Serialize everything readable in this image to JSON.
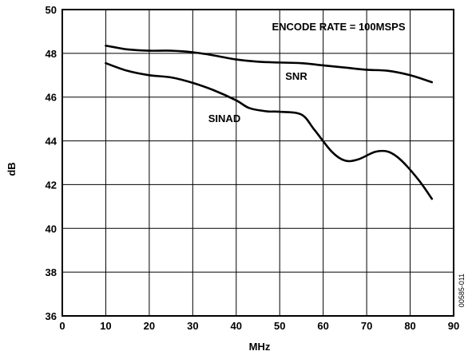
{
  "chart_data": {
    "type": "line",
    "xlabel": "MHz",
    "ylabel": "dB",
    "xlim": [
      0,
      90
    ],
    "ylim": [
      36,
      50
    ],
    "x_ticks": [
      "0",
      "10",
      "20",
      "30",
      "40",
      "50",
      "60",
      "70",
      "80",
      "90"
    ],
    "y_ticks": [
      "36",
      "38",
      "40",
      "42",
      "44",
      "46",
      "48",
      "50"
    ],
    "grid": true,
    "annotations": [
      {
        "text": "ENCODE RATE = 100MSPS"
      },
      {
        "text": "SNR"
      },
      {
        "text": "SINAD"
      }
    ],
    "figure_id": "00585-011",
    "series": [
      {
        "name": "SNR",
        "x": [
          10,
          12,
          15,
          20,
          25,
          30,
          35,
          40,
          45,
          50,
          55,
          60,
          65,
          70,
          75,
          80,
          85
        ],
        "y": [
          48.35,
          48.28,
          48.18,
          48.12,
          48.12,
          48.05,
          47.9,
          47.72,
          47.62,
          47.58,
          47.55,
          47.45,
          47.35,
          47.25,
          47.2,
          47.0,
          46.68
        ]
      },
      {
        "name": "SINAD",
        "x": [
          10,
          15,
          20,
          25,
          30,
          35,
          40,
          43,
          47,
          50,
          55,
          58,
          62,
          65,
          68,
          72,
          75,
          78,
          82,
          85
        ],
        "y": [
          47.55,
          47.2,
          47.0,
          46.9,
          46.65,
          46.3,
          45.85,
          45.5,
          45.35,
          45.33,
          45.2,
          44.5,
          43.5,
          43.1,
          43.15,
          43.5,
          43.5,
          43.1,
          42.2,
          41.35
        ]
      }
    ]
  }
}
